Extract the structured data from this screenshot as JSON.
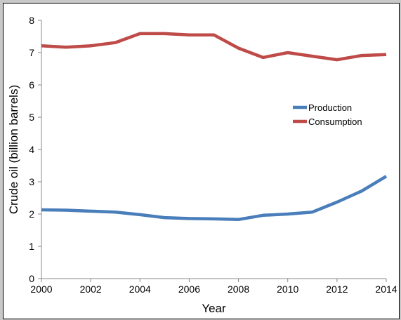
{
  "chart_data": {
    "type": "line",
    "title": "",
    "xlabel": "Year",
    "ylabel": "Crude oil (billion barrels)",
    "xlim": [
      2000,
      2014
    ],
    "ylim": [
      0,
      8
    ],
    "x_ticks": [
      2000,
      2002,
      2004,
      2006,
      2008,
      2010,
      2012,
      2014
    ],
    "y_ticks": [
      0,
      1,
      2,
      3,
      4,
      5,
      6,
      7,
      8
    ],
    "grid": false,
    "legend_position": "center-right",
    "x": [
      2000,
      2001,
      2002,
      2003,
      2004,
      2005,
      2006,
      2007,
      2008,
      2009,
      2010,
      2011,
      2012,
      2013,
      2014
    ],
    "series": [
      {
        "name": "Production",
        "color": "#4a7ebb",
        "values": [
          2.13,
          2.12,
          2.09,
          2.06,
          1.98,
          1.89,
          1.86,
          1.85,
          1.83,
          1.96,
          2.0,
          2.06,
          2.37,
          2.71,
          3.17
        ]
      },
      {
        "name": "Consumption",
        "color": "#be4b48",
        "values": [
          7.21,
          7.17,
          7.21,
          7.31,
          7.59,
          7.59,
          7.55,
          7.55,
          7.14,
          6.85,
          7.0,
          6.89,
          6.78,
          6.91,
          6.94
        ]
      }
    ]
  }
}
